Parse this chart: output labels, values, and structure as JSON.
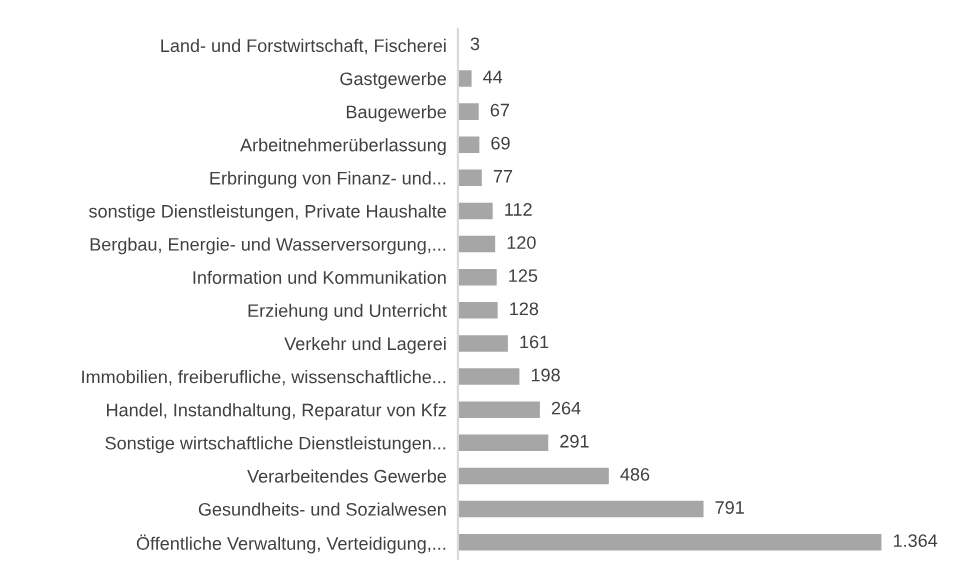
{
  "chart_data": {
    "type": "bar",
    "orientation": "horizontal",
    "color": "#a6a6a6",
    "grid": false,
    "legend": false,
    "categories": [
      "Land- und Forstwirtschaft, Fischerei",
      "Gastgewerbe",
      "Baugewerbe",
      "Arbeitnehmerüberlassung",
      "Erbringung von Finanz- und...",
      "sonstige Dienstleistungen, Private Haushalte",
      "Bergbau, Energie- und Wasserversorgung,...",
      "Information und Kommunikation",
      "Erziehung und Unterricht",
      "Verkehr und Lagerei",
      "Immobilien, freiberufliche, wissenschaftliche...",
      "Handel, Instandhaltung, Reparatur von Kfz",
      "Sonstige wirtschaftliche Dienstleistungen...",
      "Verarbeitendes Gewerbe",
      "Gesundheits- und Sozialwesen",
      "Öffentliche Verwaltung, Verteidigung,..."
    ],
    "values": [
      3,
      44,
      67,
      69,
      77,
      112,
      120,
      125,
      128,
      161,
      198,
      264,
      291,
      486,
      791,
      1364
    ],
    "value_labels": [
      "3",
      "44",
      "67",
      "69",
      "77",
      "112",
      "120",
      "125",
      "128",
      "161",
      "198",
      "264",
      "291",
      "486",
      "791",
      "1.364"
    ]
  }
}
